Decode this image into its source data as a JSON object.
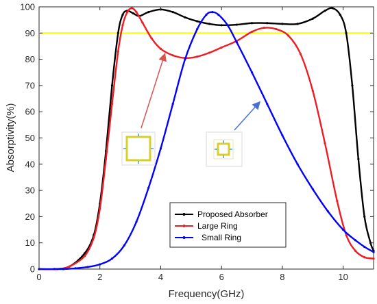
{
  "chart_data": {
    "type": "line",
    "title": "",
    "xlabel": "Frequency(GHz)",
    "ylabel": "Absorptivity(%)",
    "xlim": [
      0,
      11
    ],
    "ylim": [
      0,
      100
    ],
    "xticks": [
      "0",
      "2",
      "4",
      "6",
      "8",
      "10"
    ],
    "yticks": [
      "0",
      "10",
      "20",
      "30",
      "40",
      "50",
      "60",
      "70",
      "80",
      "90",
      "100"
    ],
    "grid": false,
    "legend_position": "bottom-center",
    "threshold_line": {
      "y": 90,
      "color": "#ffff00"
    },
    "series": [
      {
        "name": "Proposed Absorber",
        "color": "#000000",
        "points": [
          [
            0,
            0
          ],
          [
            0.5,
            0
          ],
          [
            1.0,
            1
          ],
          [
            1.5,
            6
          ],
          [
            1.8,
            13
          ],
          [
            2.0,
            25
          ],
          [
            2.2,
            45
          ],
          [
            2.4,
            70
          ],
          [
            2.6,
            90
          ],
          [
            2.75,
            97
          ],
          [
            2.9,
            98.5
          ],
          [
            3.1,
            97.5
          ],
          [
            3.3,
            96.5
          ],
          [
            3.6,
            98
          ],
          [
            4.0,
            99
          ],
          [
            4.4,
            98
          ],
          [
            4.8,
            96
          ],
          [
            5.2,
            94.5
          ],
          [
            5.6,
            93.5
          ],
          [
            6.0,
            93
          ],
          [
            6.5,
            93.2
          ],
          [
            7.0,
            93.8
          ],
          [
            7.5,
            93.8
          ],
          [
            8.0,
            93.5
          ],
          [
            8.5,
            93.5
          ],
          [
            9.0,
            95.5
          ],
          [
            9.4,
            98.5
          ],
          [
            9.65,
            99.5
          ],
          [
            9.9,
            97
          ],
          [
            10.1,
            90
          ],
          [
            10.3,
            70
          ],
          [
            10.5,
            42
          ],
          [
            10.7,
            20
          ],
          [
            10.9,
            10
          ],
          [
            11,
            7
          ]
        ]
      },
      {
        "name": "Large Ring",
        "color": "#ee1c24",
        "points": [
          [
            0,
            0
          ],
          [
            0.6,
            0
          ],
          [
            1.0,
            1
          ],
          [
            1.5,
            5
          ],
          [
            1.8,
            12
          ],
          [
            2.0,
            23
          ],
          [
            2.2,
            42
          ],
          [
            2.4,
            63
          ],
          [
            2.6,
            83
          ],
          [
            2.75,
            93
          ],
          [
            2.9,
            98
          ],
          [
            3.05,
            99.5
          ],
          [
            3.2,
            98
          ],
          [
            3.4,
            94
          ],
          [
            3.7,
            88
          ],
          [
            4.0,
            84
          ],
          [
            4.4,
            81.5
          ],
          [
            4.8,
            80.5
          ],
          [
            5.2,
            81
          ],
          [
            5.6,
            82.5
          ],
          [
            6.0,
            84.5
          ],
          [
            6.5,
            87
          ],
          [
            7.0,
            90.5
          ],
          [
            7.4,
            92
          ],
          [
            7.8,
            91.5
          ],
          [
            8.2,
            89
          ],
          [
            8.6,
            82
          ],
          [
            9.0,
            68
          ],
          [
            9.4,
            48
          ],
          [
            9.8,
            26
          ],
          [
            10.1,
            13
          ],
          [
            10.4,
            7
          ],
          [
            10.7,
            4.5
          ],
          [
            11,
            4
          ]
        ]
      },
      {
        "name": "Small Ring",
        "color": "#0000ff",
        "points": [
          [
            0,
            0
          ],
          [
            0.8,
            0
          ],
          [
            1.2,
            0.3
          ],
          [
            1.6,
            0.8
          ],
          [
            2.0,
            1.8
          ],
          [
            2.4,
            4
          ],
          [
            2.8,
            9
          ],
          [
            3.2,
            18
          ],
          [
            3.6,
            31
          ],
          [
            4.0,
            46
          ],
          [
            4.4,
            63
          ],
          [
            4.8,
            80
          ],
          [
            5.2,
            91.5
          ],
          [
            5.5,
            97
          ],
          [
            5.7,
            98
          ],
          [
            5.9,
            97
          ],
          [
            6.2,
            93
          ],
          [
            6.5,
            86.5
          ],
          [
            7.0,
            75
          ],
          [
            7.5,
            63
          ],
          [
            8.0,
            51
          ],
          [
            8.5,
            40
          ],
          [
            9.0,
            30.5
          ],
          [
            9.5,
            22
          ],
          [
            10.0,
            15
          ],
          [
            10.4,
            11
          ],
          [
            10.7,
            8.5
          ],
          [
            11,
            6.5
          ]
        ]
      }
    ]
  }
}
